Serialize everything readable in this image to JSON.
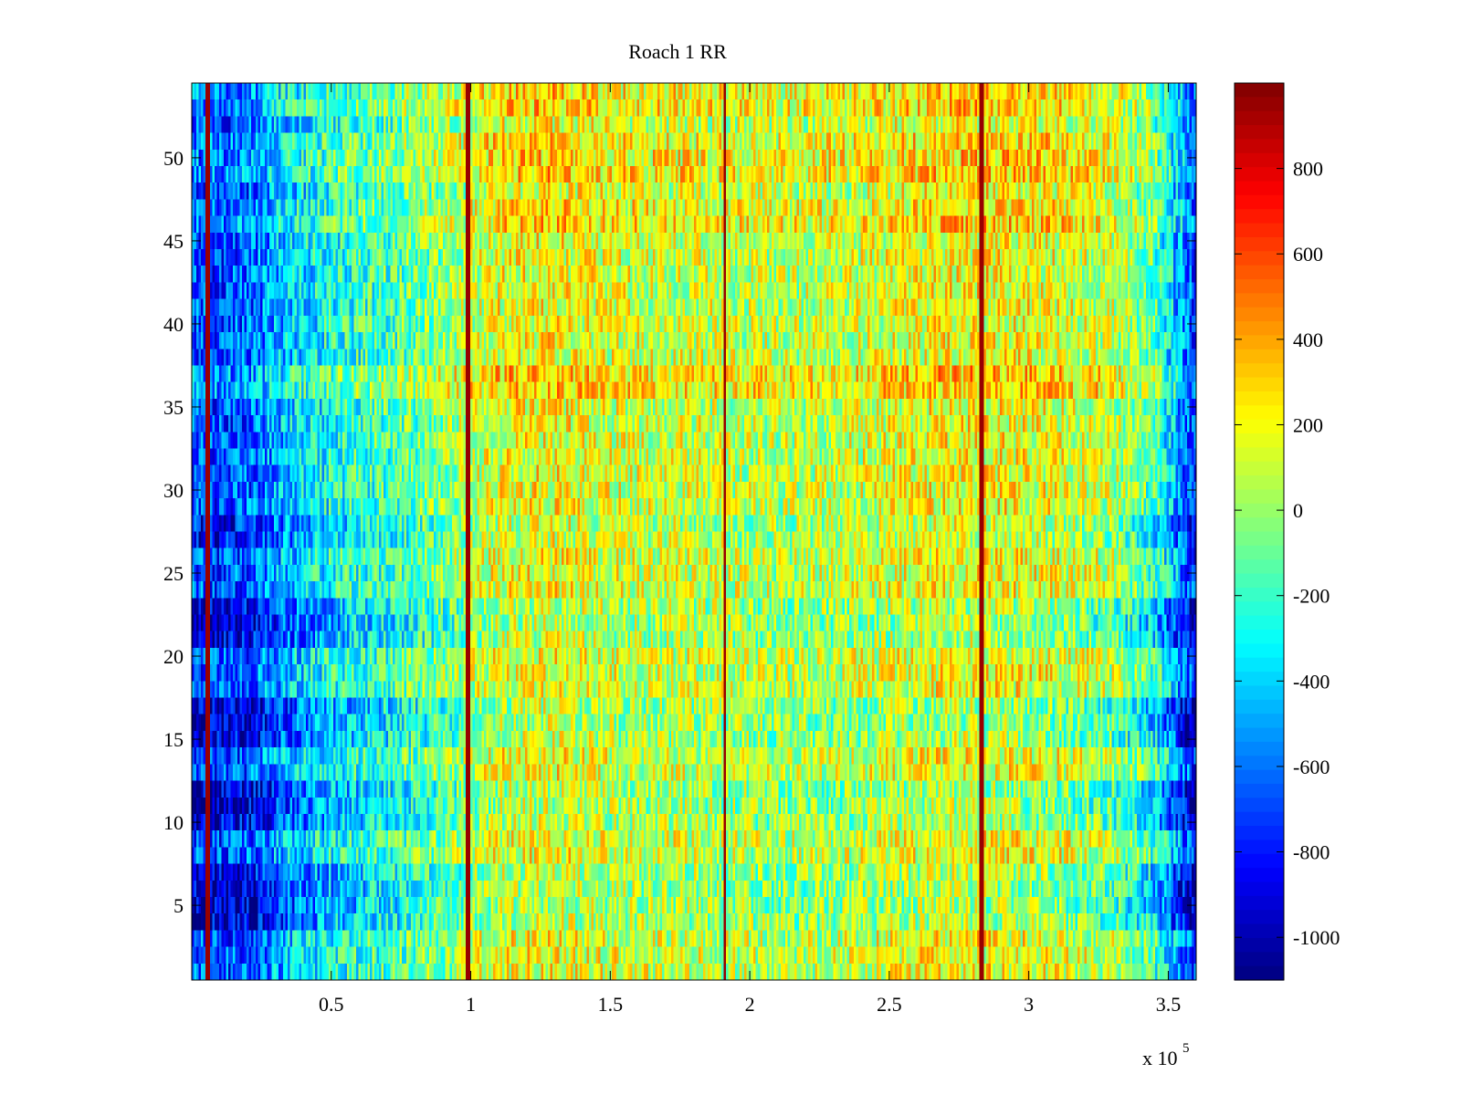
{
  "figure": {
    "background": "#ffffff"
  },
  "chart_data": {
    "type": "heatmap",
    "title": "Roach 1 RR",
    "xlabel": "",
    "ylabel": "",
    "x_exponent_label": "x 10",
    "x_exponent_power": "5",
    "xlim": [
      0,
      360000
    ],
    "ylim": [
      0.5,
      54.5
    ],
    "x_ticks": [
      50000,
      100000,
      150000,
      200000,
      250000,
      300000,
      350000
    ],
    "x_tick_labels": [
      "0.5",
      "1",
      "1.5",
      "2",
      "2.5",
      "3",
      "3.5"
    ],
    "y_ticks": [
      5,
      10,
      15,
      20,
      25,
      30,
      35,
      40,
      45,
      50
    ],
    "y_tick_labels": [
      "5",
      "10",
      "15",
      "20",
      "25",
      "30",
      "35",
      "40",
      "45",
      "50"
    ],
    "rows": 54,
    "colormap": "jet",
    "color_range": [
      -1100,
      1000
    ],
    "colorbar_ticks": [
      800,
      600,
      400,
      200,
      0,
      -200,
      -400,
      -600,
      -800,
      -1000
    ],
    "colorbar_tick_labels": [
      "800",
      "600",
      "400",
      "200",
      "0",
      "-200",
      "-400",
      "-600",
      "-800",
      "-1000"
    ],
    "value_profile_x": [
      [
        0,
        -650
      ],
      [
        6000,
        -700
      ],
      [
        20000,
        -650
      ],
      [
        35000,
        -420
      ],
      [
        50000,
        -270
      ],
      [
        70000,
        -160
      ],
      [
        90000,
        -30
      ],
      [
        110000,
        170
      ],
      [
        130000,
        200
      ],
      [
        150000,
        130
      ],
      [
        170000,
        110
      ],
      [
        190000,
        90
      ],
      [
        210000,
        60
      ],
      [
        230000,
        80
      ],
      [
        250000,
        140
      ],
      [
        270000,
        200
      ],
      [
        290000,
        200
      ],
      [
        310000,
        160
      ],
      [
        330000,
        70
      ],
      [
        345000,
        -150
      ],
      [
        355000,
        -550
      ],
      [
        360000,
        -750
      ]
    ],
    "row_offsets": {
      "4": -250,
      "5": -300,
      "6": -300,
      "7": -250,
      "10": -250,
      "11": -300,
      "12": -300,
      "15": -250,
      "16": -300,
      "17": -300,
      "21": -250,
      "22": -300,
      "23": -250,
      "27": -150,
      "28": -150,
      "36": 150,
      "37": 150,
      "46": 120,
      "47": 80,
      "49": 130,
      "50": 110,
      "51": 100,
      "53": 120,
      "54": 100
    },
    "high_lines_x": [
      6000,
      99000,
      191000,
      283000
    ],
    "high_line_value": 950,
    "noise_amplitude": 300
  }
}
